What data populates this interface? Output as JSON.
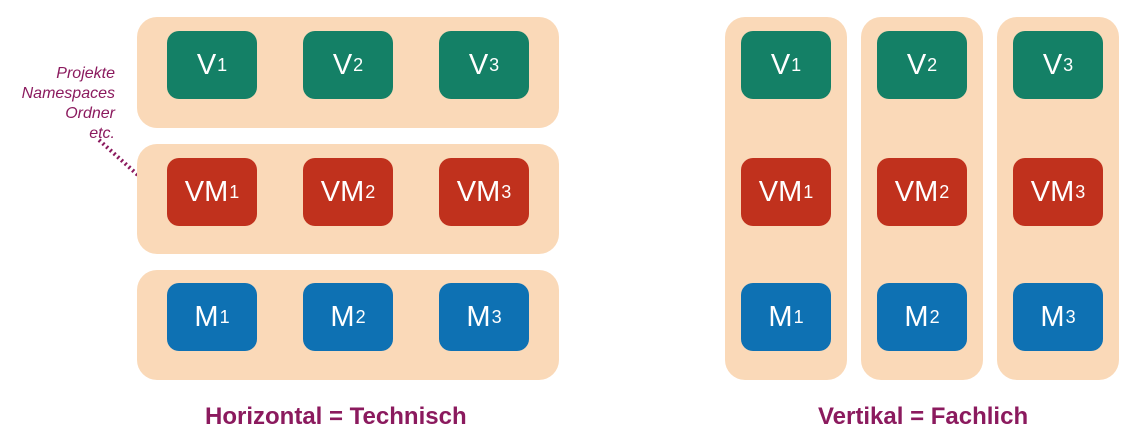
{
  "colors": {
    "band": "#fad9b8",
    "view": "#148066",
    "viewmodel": "#c0311d",
    "model": "#0e71b3",
    "accent": "#8b1a5e"
  },
  "note": {
    "lines": [
      "Projekte",
      "Namespaces",
      "Ordner",
      "etc."
    ]
  },
  "tiles": {
    "v": {
      "label": "V",
      "subs": [
        "1",
        "2",
        "3"
      ]
    },
    "vm": {
      "label": "VM",
      "subs": [
        "1",
        "2",
        "3"
      ]
    },
    "m": {
      "label": "M",
      "subs": [
        "1",
        "2",
        "3"
      ]
    }
  },
  "captions": {
    "left": "Horizontal = Technisch",
    "right": "Vertikal = Fachlich"
  }
}
